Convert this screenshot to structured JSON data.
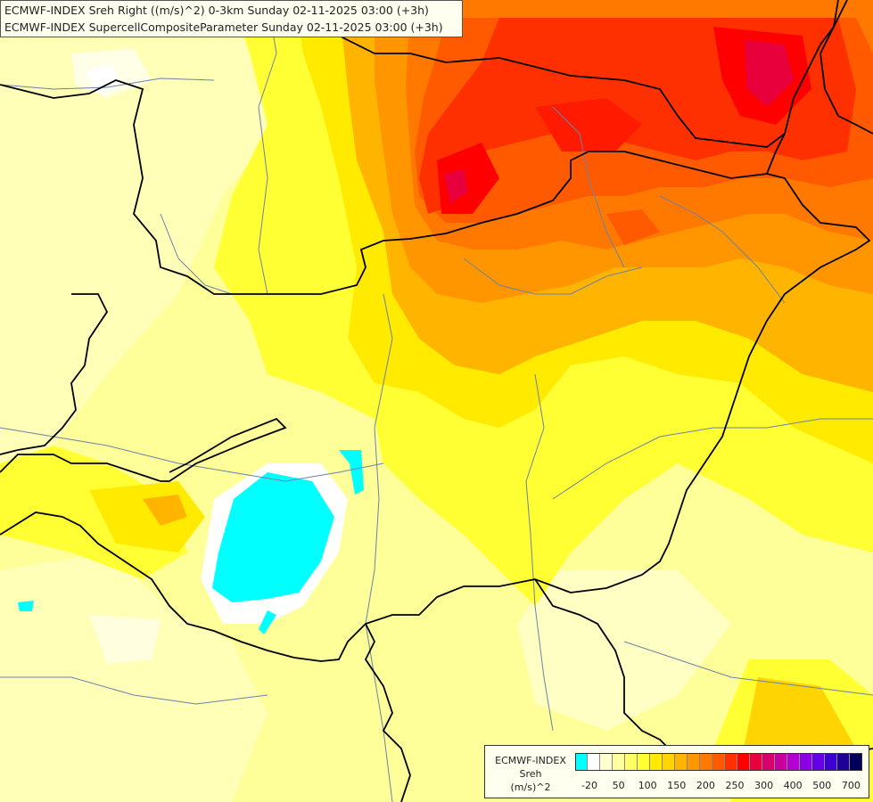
{
  "title": {
    "line1": "ECMWF-INDEX Sreh Right ((m/s)^2) 0-3km Sunday 02-11-2025 03:00 (+3h)",
    "line2": "ECMWF-INDEX SupercellCompositeParameter Sunday 02-11-2025 03:00 (+3h)"
  },
  "legend": {
    "source": "ECMWF-INDEX",
    "parameter": "Sreh",
    "unit": "(m/s)^2",
    "colors": [
      "#00ffff",
      "#ffffff",
      "#ffffd0",
      "#ffffa0",
      "#ffff66",
      "#ffff33",
      "#ffea00",
      "#ffd400",
      "#ffb400",
      "#ff9600",
      "#ff7800",
      "#ff5a00",
      "#ff3000",
      "#ff0000",
      "#e8003c",
      "#d8006c",
      "#c800a0",
      "#b400d0",
      "#8c00e6",
      "#6400e6",
      "#3c00d0",
      "#1e0096",
      "#00005a"
    ],
    "ticks": [
      {
        "label": "-20",
        "slot": 1
      },
      {
        "label": "50",
        "slot": 3
      },
      {
        "label": "100",
        "slot": 5
      },
      {
        "label": "150",
        "slot": 7
      },
      {
        "label": "200",
        "slot": 9
      },
      {
        "label": "250",
        "slot": 11
      },
      {
        "label": "300",
        "slot": 13
      },
      {
        "label": "400",
        "slot": 15
      },
      {
        "label": "500",
        "slot": 17
      },
      {
        "label": "700",
        "slot": 19
      }
    ]
  }
}
